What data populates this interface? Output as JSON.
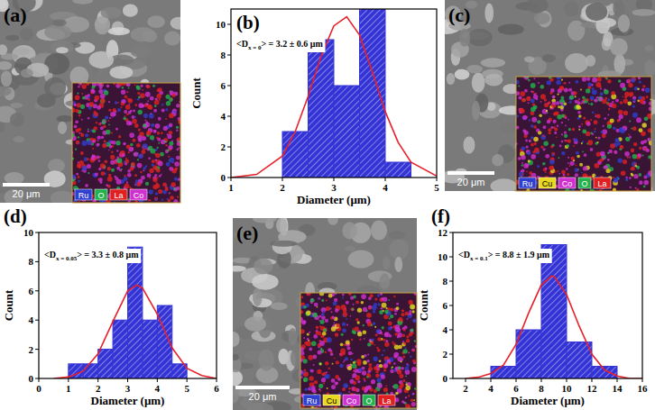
{
  "chart_data": [
    {
      "type": "histogram",
      "panel": "(b)",
      "annotation": [
        "<D",
        "x = 0",
        "> = 3.2 ± 0.6 μm"
      ],
      "x_label": "Diameter (μm)",
      "y_label": "Count",
      "bins": [
        2,
        2.5,
        3,
        3.5,
        4,
        4.5
      ],
      "values": [
        3,
        9,
        6,
        11,
        1
      ],
      "color": "#3434d6",
      "xlim": [
        1,
        5
      ],
      "xticks": [
        1,
        2,
        3,
        4,
        5
      ],
      "ylim": [
        0,
        11
      ],
      "yticks": [
        0,
        2,
        4,
        6,
        8,
        10
      ],
      "fit": {
        "type": "line",
        "color": "#e8202a",
        "x": [
          1,
          1.5,
          2,
          2.25,
          2.5,
          2.75,
          3,
          3.25,
          3.5,
          3.75,
          4,
          4.25,
          4.5,
          5
        ],
        "values": [
          0,
          0.2,
          1.4,
          3.0,
          5.3,
          7.9,
          9.9,
          10.5,
          9.3,
          6.9,
          4.3,
          2.3,
          1.0,
          0.1
        ]
      }
    },
    {
      "type": "histogram",
      "panel": "(d)",
      "annotation": [
        "<D",
        "x = 0.05",
        "> = 3.3 ± 0.8 μm"
      ],
      "x_label": "Diameter (μm)",
      "y_label": "Count",
      "bins": [
        1,
        1.5,
        2,
        2.5,
        3,
        3.5,
        4,
        4.5,
        5
      ],
      "values": [
        1,
        1,
        2,
        4,
        9,
        4,
        5,
        1
      ],
      "color": "#3434d6",
      "xlim": [
        0,
        6
      ],
      "xticks": [
        0,
        1,
        2,
        3,
        4,
        5,
        6
      ],
      "ylim": [
        0,
        10
      ],
      "yticks": [
        0,
        2,
        4,
        6,
        8,
        10
      ],
      "fit": {
        "type": "line",
        "color": "#e8202a",
        "x": [
          0.5,
          1,
          1.5,
          2,
          2.5,
          3,
          3.3,
          3.5,
          4,
          4.5,
          5,
          5.5,
          6
        ],
        "values": [
          0,
          0.1,
          0.5,
          1.7,
          3.9,
          6.0,
          6.4,
          6.2,
          4.4,
          2.1,
          0.7,
          0.2,
          0
        ]
      }
    },
    {
      "type": "histogram",
      "panel": "(f)",
      "annotation": [
        "<D",
        "x = 0.1",
        "> = 8.8 ± 1.9 μm"
      ],
      "x_label": "Diameter (μm)",
      "y_label": "Count",
      "bins": [
        4,
        6,
        8,
        10,
        12,
        14
      ],
      "values": [
        1,
        4,
        11,
        3,
        1
      ],
      "color": "#3434d6",
      "xlim": [
        1,
        16
      ],
      "xticks": [
        2,
        4,
        6,
        8,
        10,
        12,
        14,
        16
      ],
      "ylim": [
        0,
        12
      ],
      "yticks": [
        0,
        2,
        4,
        6,
        8,
        10,
        12
      ],
      "fit": {
        "type": "line",
        "color": "#e8202a",
        "x": [
          2,
          3,
          4,
          5,
          6,
          7,
          8,
          8.8,
          9,
          10,
          11,
          12,
          13,
          14,
          15,
          16
        ],
        "values": [
          0,
          0.1,
          0.4,
          1.1,
          2.8,
          5.4,
          7.7,
          8.4,
          8.4,
          6.9,
          4.3,
          2.0,
          0.7,
          0.2,
          0,
          0
        ]
      }
    }
  ],
  "images": [
    {
      "panel": "(a)",
      "scale_bar": "20 μm",
      "elements": [
        {
          "name": "Ru",
          "color": "#2f3fd0"
        },
        {
          "name": "O",
          "color": "#22b14c"
        },
        {
          "name": "La",
          "color": "#e02020"
        },
        {
          "name": "Co",
          "color": "#d030d0"
        }
      ]
    },
    {
      "panel": "(c)",
      "scale_bar": "20 μm",
      "elements": [
        {
          "name": "Ru",
          "color": "#2f3fd0"
        },
        {
          "name": "Cu",
          "color": "#e8d820"
        },
        {
          "name": "Co",
          "color": "#d030d0"
        },
        {
          "name": "O",
          "color": "#22b14c"
        },
        {
          "name": "La",
          "color": "#e02020"
        }
      ]
    },
    {
      "panel": "(e)",
      "scale_bar": "20 μm",
      "elements": [
        {
          "name": "Ru",
          "color": "#2f3fd0"
        },
        {
          "name": "Cu",
          "color": "#e8d820"
        },
        {
          "name": "Co",
          "color": "#d030d0"
        },
        {
          "name": "O",
          "color": "#22b14c"
        },
        {
          "name": "La",
          "color": "#e02020"
        }
      ]
    }
  ]
}
